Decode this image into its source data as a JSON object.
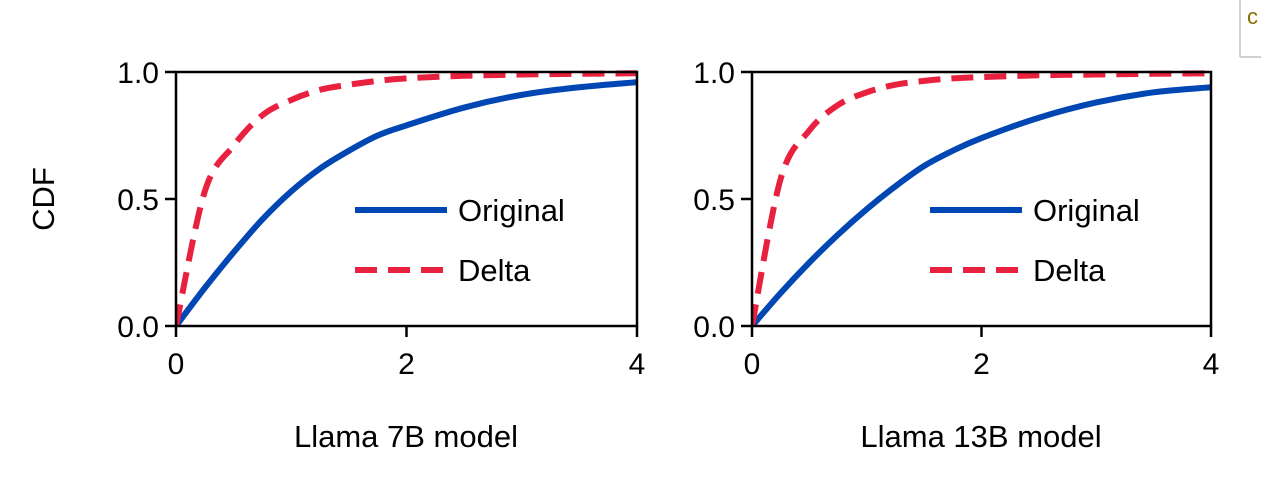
{
  "corner_fragment": "c",
  "colors": {
    "original": "#0047b3",
    "delta": "#e8213f",
    "axis": "#000000"
  },
  "chart_data": [
    {
      "type": "line",
      "title": "",
      "xlabel": "Llama 7B model",
      "ylabel": "CDF",
      "xlim": [
        0,
        4
      ],
      "ylim": [
        0,
        1
      ],
      "xticks": [
        0,
        2,
        4
      ],
      "xtick_labels": [
        "0",
        "2",
        "4"
      ],
      "yticks": [
        0,
        0.5,
        1
      ],
      "ytick_labels": [
        "0.0",
        "0.5",
        "1.0"
      ],
      "grid": false,
      "legend_position": "center-right",
      "x": [
        0,
        0.25,
        0.5,
        0.75,
        1.0,
        1.25,
        1.5,
        1.75,
        2.0,
        2.5,
        3.0,
        3.5,
        4.0
      ],
      "series": [
        {
          "name": "Original",
          "style": "solid",
          "values": [
            0,
            0.15,
            0.29,
            0.42,
            0.53,
            0.62,
            0.69,
            0.75,
            0.79,
            0.86,
            0.91,
            0.94,
            0.96
          ]
        },
        {
          "name": "Delta",
          "style": "dashed",
          "values": [
            0,
            0.53,
            0.71,
            0.83,
            0.89,
            0.93,
            0.95,
            0.965,
            0.975,
            0.985,
            0.99,
            0.993,
            0.995
          ]
        }
      ]
    },
    {
      "type": "line",
      "title": "",
      "xlabel": "Llama 13B model",
      "ylabel": "",
      "xlim": [
        0,
        4
      ],
      "ylim": [
        0,
        1
      ],
      "xticks": [
        0,
        2,
        4
      ],
      "xtick_labels": [
        "0",
        "2",
        "4"
      ],
      "yticks": [
        0,
        0.5,
        1
      ],
      "ytick_labels": [
        "0.0",
        "0.5",
        "1.0"
      ],
      "grid": false,
      "legend_position": "center-right",
      "x": [
        0,
        0.25,
        0.5,
        0.75,
        1.0,
        1.25,
        1.5,
        1.75,
        2.0,
        2.5,
        3.0,
        3.5,
        4.0
      ],
      "series": [
        {
          "name": "Original",
          "style": "solid",
          "values": [
            0,
            0.13,
            0.25,
            0.36,
            0.46,
            0.55,
            0.63,
            0.69,
            0.74,
            0.82,
            0.88,
            0.92,
            0.94
          ]
        },
        {
          "name": "Delta",
          "style": "dashed",
          "values": [
            0,
            0.58,
            0.77,
            0.87,
            0.92,
            0.95,
            0.965,
            0.975,
            0.98,
            0.987,
            0.99,
            0.993,
            0.995
          ]
        }
      ]
    }
  ]
}
